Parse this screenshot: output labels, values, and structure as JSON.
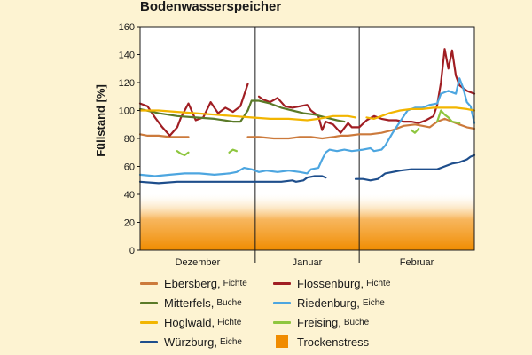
{
  "chart_data": {
    "type": "line",
    "title": "Bodenwasserspeicher",
    "ylabel": "Füllstand [%]",
    "xlabel": "",
    "ylim": [
      0,
      160
    ],
    "yticks": [
      0,
      20,
      40,
      60,
      80,
      100,
      120,
      140,
      160
    ],
    "x_range": [
      0,
      90
    ],
    "months": [
      {
        "label": "Dezember",
        "start": 0,
        "end": 31
      },
      {
        "label": "Januar",
        "start": 31,
        "end": 59
      },
      {
        "label": "Februar",
        "start": 59,
        "end": 90
      }
    ],
    "drought_band": {
      "label": "Trockenstress",
      "from": 0,
      "to": 40,
      "color": "#f08c00"
    },
    "grid": "vertical month separators",
    "legend_position": "bottom",
    "series": [
      {
        "name": "Ebersberg",
        "stand": "Fichte",
        "color": "#cc7a3c",
        "segments": [
          [
            [
              0,
              83
            ],
            [
              2,
              82
            ],
            [
              5,
              82
            ],
            [
              8,
              81
            ],
            [
              10,
              81
            ],
            [
              13,
              81
            ]
          ],
          [
            [
              29,
              81
            ],
            [
              32,
              81
            ],
            [
              36,
              80
            ],
            [
              40,
              80
            ],
            [
              43,
              81
            ],
            [
              46,
              81
            ],
            [
              49,
              80
            ],
            [
              52,
              81
            ],
            [
              54,
              82
            ],
            [
              56,
              82
            ],
            [
              59,
              83
            ],
            [
              62,
              83
            ],
            [
              65,
              84
            ],
            [
              68,
              86
            ],
            [
              71,
              89
            ],
            [
              74,
              90
            ],
            [
              76,
              89
            ],
            [
              78,
              88
            ],
            [
              80,
              92
            ],
            [
              82,
              94
            ],
            [
              84,
              92
            ],
            [
              86,
              90
            ],
            [
              88,
              88
            ],
            [
              90,
              87
            ]
          ]
        ]
      },
      {
        "name": "Flossenbürg",
        "stand": "Fichte",
        "color": "#a01e23",
        "segments": [
          [
            [
              0,
              105
            ],
            [
              2,
              103
            ],
            [
              4,
              95
            ],
            [
              6,
              88
            ],
            [
              8,
              82
            ],
            [
              10,
              88
            ],
            [
              11,
              95
            ],
            [
              13,
              105
            ],
            [
              15,
              93
            ],
            [
              17,
              95
            ],
            [
              19,
              106
            ],
            [
              21,
              98
            ],
            [
              23,
              102
            ],
            [
              25,
              99
            ],
            [
              27,
              103
            ],
            [
              28,
              111
            ],
            [
              29,
              119
            ]
          ],
          [
            [
              32,
              110
            ],
            [
              33,
              108
            ],
            [
              35,
              106
            ],
            [
              37,
              109
            ],
            [
              39,
              103
            ],
            [
              41,
              102
            ],
            [
              43,
              103
            ],
            [
              45,
              104
            ],
            [
              46,
              100
            ],
            [
              48,
              96
            ],
            [
              49,
              86
            ],
            [
              50,
              92
            ],
            [
              52,
              90
            ],
            [
              54,
              84
            ],
            [
              56,
              91
            ],
            [
              57,
              88
            ],
            [
              59,
              88
            ],
            [
              61,
              93
            ],
            [
              63,
              96
            ],
            [
              65,
              94
            ],
            [
              67,
              93
            ],
            [
              69,
              93
            ],
            [
              71,
              92
            ],
            [
              73,
              92
            ],
            [
              75,
              91
            ],
            [
              77,
              93
            ],
            [
              79,
              96
            ],
            [
              80,
              104
            ],
            [
              81,
              120
            ],
            [
              82,
              144
            ],
            [
              83,
              130
            ],
            [
              84,
              143
            ],
            [
              85,
              125
            ],
            [
              86,
              118
            ],
            [
              88,
              114
            ],
            [
              90,
              112
            ]
          ]
        ]
      },
      {
        "name": "Mitterfels",
        "stand": "Buche",
        "color": "#5a7a28",
        "segments": [
          [
            [
              0,
              101
            ],
            [
              5,
              98
            ],
            [
              10,
              96
            ],
            [
              15,
              95
            ],
            [
              20,
              94
            ],
            [
              25,
              92
            ],
            [
              27,
              92
            ],
            [
              29,
              100
            ],
            [
              30,
              107
            ],
            [
              32,
              107
            ],
            [
              35,
              105
            ],
            [
              38,
              102
            ],
            [
              41,
              100
            ],
            [
              44,
              98
            ],
            [
              47,
              97
            ],
            [
              50,
              95
            ],
            [
              53,
              93
            ],
            [
              55,
              92
            ]
          ]
        ]
      },
      {
        "name": "Riedenburg",
        "stand": "Eiche",
        "color": "#4da6e0",
        "segments": [
          [
            [
              0,
              54
            ],
            [
              4,
              53
            ],
            [
              8,
              54
            ],
            [
              12,
              55
            ],
            [
              16,
              55
            ],
            [
              20,
              54
            ],
            [
              24,
              55
            ],
            [
              26,
              56
            ],
            [
              28,
              59
            ],
            [
              30,
              58
            ],
            [
              32,
              56
            ],
            [
              34,
              57
            ],
            [
              37,
              56
            ],
            [
              40,
              57
            ],
            [
              43,
              56
            ],
            [
              45,
              55
            ],
            [
              46,
              58
            ],
            [
              48,
              59
            ],
            [
              49,
              65
            ],
            [
              50,
              70
            ],
            [
              51,
              72
            ],
            [
              53,
              71
            ],
            [
              55,
              72
            ],
            [
              57,
              71
            ],
            [
              60,
              72
            ],
            [
              62,
              73
            ],
            [
              63,
              71
            ],
            [
              65,
              72
            ],
            [
              66,
              75
            ],
            [
              68,
              84
            ],
            [
              70,
              92
            ],
            [
              72,
              100
            ],
            [
              74,
              102
            ],
            [
              76,
              102
            ],
            [
              78,
              104
            ],
            [
              80,
              105
            ],
            [
              81,
              112
            ],
            [
              83,
              114
            ],
            [
              85,
              112
            ],
            [
              86,
              123
            ],
            [
              87,
              116
            ],
            [
              88,
              106
            ],
            [
              89,
              103
            ],
            [
              90,
              91
            ]
          ]
        ]
      },
      {
        "name": "Höglwald",
        "stand": "Fichte",
        "color": "#f2b500",
        "segments": [
          [
            [
              0,
              100
            ],
            [
              5,
              100
            ],
            [
              10,
              99
            ],
            [
              15,
              98
            ],
            [
              20,
              97
            ],
            [
              25,
              96
            ],
            [
              30,
              95
            ],
            [
              35,
              94
            ],
            [
              40,
              94
            ],
            [
              45,
              93
            ],
            [
              48,
              94
            ],
            [
              52,
              96
            ],
            [
              56,
              96
            ],
            [
              58,
              95
            ]
          ],
          [
            [
              61,
              95
            ],
            [
              63,
              94
            ],
            [
              65,
              96
            ],
            [
              67,
              98
            ],
            [
              70,
              100
            ],
            [
              73,
              101
            ],
            [
              76,
              101
            ],
            [
              79,
              102
            ],
            [
              82,
              102
            ],
            [
              85,
              102
            ],
            [
              88,
              101
            ],
            [
              90,
              100
            ]
          ]
        ]
      },
      {
        "name": "Freising",
        "stand": "Buche",
        "color": "#8ec63f",
        "segments": [
          [
            [
              10,
              71
            ],
            [
              11,
              69
            ],
            [
              12,
              68
            ],
            [
              13,
              70
            ]
          ],
          [
            [
              24,
              70
            ],
            [
              25,
              72
            ],
            [
              26,
              71
            ]
          ],
          [
            [
              73,
              86
            ],
            [
              74,
              84
            ],
            [
              75,
              87
            ]
          ],
          [
            [
              80,
              92
            ],
            [
              81,
              100
            ],
            [
              82,
              97
            ],
            [
              83,
              95
            ],
            [
              84,
              92
            ],
            [
              86,
              91
            ]
          ]
        ]
      },
      {
        "name": "Würzburg",
        "stand": "Eiche",
        "color": "#1e4e8c",
        "segments": [
          [
            [
              0,
              49
            ],
            [
              5,
              48
            ],
            [
              10,
              49
            ],
            [
              15,
              49
            ],
            [
              20,
              49
            ],
            [
              25,
              49
            ],
            [
              30,
              49
            ],
            [
              35,
              49
            ],
            [
              38,
              49
            ],
            [
              41,
              50
            ],
            [
              42,
              49
            ],
            [
              44,
              50
            ],
            [
              45,
              52
            ],
            [
              47,
              53
            ],
            [
              49,
              53
            ],
            [
              50,
              52
            ]
          ],
          [
            [
              58,
              51
            ],
            [
              60,
              51
            ],
            [
              62,
              50
            ],
            [
              64,
              51
            ],
            [
              66,
              55
            ],
            [
              68,
              56
            ],
            [
              70,
              57
            ],
            [
              73,
              58
            ],
            [
              76,
              58
            ],
            [
              80,
              58
            ],
            [
              82,
              60
            ],
            [
              84,
              62
            ],
            [
              86,
              63
            ],
            [
              88,
              65
            ],
            [
              89,
              67
            ],
            [
              90,
              68
            ]
          ]
        ]
      }
    ]
  }
}
